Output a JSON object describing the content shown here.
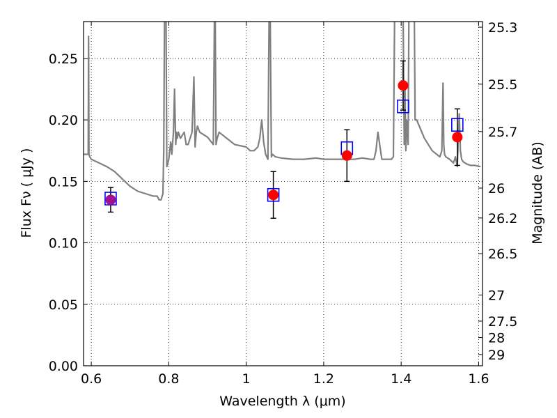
{
  "chart_data": {
    "type": "scatter",
    "title": "",
    "xlabel": "Wavelength  λ (μm)",
    "ylabel": "Flux  Fν  ( μJy )",
    "ylabel_right": "Magnitude (AB)",
    "xlim": [
      0.58,
      1.61
    ],
    "ylim": [
      0.0,
      0.28
    ],
    "grid": true,
    "x_ticks": [
      0.6,
      0.8,
      1.0,
      1.2,
      1.4,
      1.6
    ],
    "x_tick_labels": [
      "0.6",
      "0.8",
      "1",
      "1.2",
      "1.4",
      "1.6"
    ],
    "y_ticks": [
      0.0,
      0.05,
      0.1,
      0.15,
      0.2,
      0.25
    ],
    "y_tick_labels": [
      "0.00",
      "0.05",
      "0.10",
      "0.15",
      "0.20",
      "0.25"
    ],
    "right_axis": {
      "ticks": [
        25.3,
        25.5,
        25.7,
        26,
        26.2,
        26.5,
        27,
        27.5,
        28,
        29
      ],
      "tick_labels": [
        "25.3",
        "25.5",
        "25.7",
        "26",
        "26.2",
        "26.5",
        "27",
        "27.5",
        "28",
        "29"
      ]
    },
    "series": [
      {
        "role": "template-spectrum",
        "color": "#808080",
        "x": [
          0.58,
          0.592,
          0.593,
          0.594,
          0.596,
          0.6,
          0.62,
          0.64,
          0.66,
          0.68,
          0.7,
          0.72,
          0.74,
          0.76,
          0.77,
          0.775,
          0.78,
          0.785,
          0.787,
          0.789,
          0.791,
          0.793,
          0.795,
          0.8,
          0.805,
          0.808,
          0.812,
          0.815,
          0.818,
          0.82,
          0.822,
          0.825,
          0.83,
          0.84,
          0.845,
          0.85,
          0.86,
          0.865,
          0.868,
          0.871,
          0.874,
          0.88,
          0.9,
          0.915,
          0.918,
          0.92,
          0.922,
          0.925,
          0.93,
          0.95,
          0.97,
          1.0,
          1.01,
          1.02,
          1.03,
          1.035,
          1.04,
          1.045,
          1.05,
          1.056,
          1.059,
          1.062,
          1.065,
          1.068,
          1.075,
          1.09,
          1.12,
          1.15,
          1.18,
          1.2,
          1.22,
          1.24,
          1.26,
          1.28,
          1.3,
          1.32,
          1.33,
          1.335,
          1.34,
          1.35,
          1.37,
          1.375,
          1.38,
          1.383,
          1.384,
          1.392,
          1.398,
          1.405,
          1.408,
          1.41,
          1.412,
          1.414,
          1.418,
          1.42,
          1.425,
          1.43,
          1.432,
          1.434,
          1.436,
          1.44,
          1.46,
          1.48,
          1.5,
          1.505,
          1.508,
          1.51,
          1.512,
          1.515,
          1.525,
          1.535,
          1.54,
          1.545,
          1.55,
          1.553,
          1.556,
          1.56,
          1.57,
          1.58,
          1.59,
          1.605
        ],
        "y": [
          0.172,
          0.172,
          0.268,
          0.172,
          0.17,
          0.168,
          0.165,
          0.162,
          0.158,
          0.152,
          0.146,
          0.142,
          0.14,
          0.138,
          0.138,
          0.135,
          0.135,
          0.14,
          0.175,
          0.285,
          0.285,
          0.285,
          0.162,
          0.168,
          0.182,
          0.172,
          0.19,
          0.225,
          0.18,
          0.19,
          0.185,
          0.19,
          0.185,
          0.19,
          0.18,
          0.18,
          0.19,
          0.235,
          0.178,
          0.19,
          0.195,
          0.19,
          0.186,
          0.18,
          0.285,
          0.285,
          0.18,
          0.185,
          0.19,
          0.185,
          0.18,
          0.178,
          0.175,
          0.175,
          0.178,
          0.185,
          0.2,
          0.182,
          0.172,
          0.168,
          0.285,
          0.285,
          0.17,
          0.172,
          0.17,
          0.169,
          0.168,
          0.168,
          0.169,
          0.168,
          0.168,
          0.168,
          0.168,
          0.168,
          0.169,
          0.168,
          0.168,
          0.175,
          0.19,
          0.168,
          0.168,
          0.168,
          0.17,
          0.28,
          0.285,
          0.285,
          0.285,
          0.285,
          0.18,
          0.225,
          0.175,
          0.2,
          0.18,
          0.285,
          0.285,
          0.285,
          0.285,
          0.285,
          0.2,
          0.2,
          0.185,
          0.175,
          0.17,
          0.175,
          0.23,
          0.18,
          0.172,
          0.17,
          0.168,
          0.165,
          0.17,
          0.162,
          0.205,
          0.175,
          0.168,
          0.166,
          0.164,
          0.163,
          0.163,
          0.162
        ]
      },
      {
        "role": "model-photometry",
        "marker": "open-square",
        "color": "#0000ff",
        "x": [
          0.65,
          1.07,
          1.26,
          1.405,
          1.545
        ],
        "y": [
          0.136,
          0.139,
          0.177,
          0.211,
          0.196
        ]
      },
      {
        "role": "observed-photometry",
        "marker": "filled-circle",
        "color": "#ff0000",
        "x": [
          0.65,
          1.07,
          1.26,
          1.405,
          1.545
        ],
        "y": [
          0.135,
          0.139,
          0.171,
          0.228,
          0.186
        ],
        "yerr": [
          0.01,
          0.019,
          0.021,
          0.02,
          0.023
        ]
      }
    ],
    "colors": {
      "spectrum": "#808080",
      "model": "#0000ff",
      "observed": "#ff0000",
      "overlap": "#a01090"
    }
  }
}
